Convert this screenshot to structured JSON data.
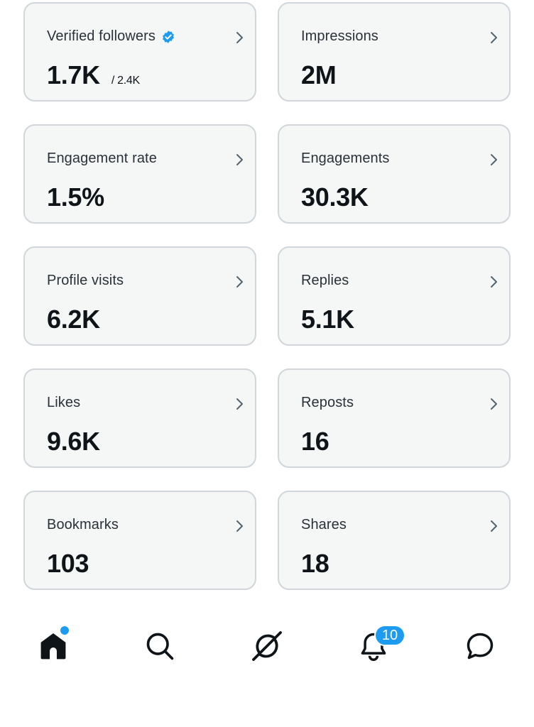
{
  "cards": [
    {
      "label": "Verified followers",
      "value": "1.7K",
      "sub": "/ 2.4K",
      "verified": true
    },
    {
      "label": "Impressions",
      "value": "2M"
    },
    {
      "label": "Engagement rate",
      "value": "1.5%"
    },
    {
      "label": "Engagements",
      "value": "30.3K"
    },
    {
      "label": "Profile visits",
      "value": "6.2K"
    },
    {
      "label": "Replies",
      "value": "5.1K"
    },
    {
      "label": "Likes",
      "value": "9.6K"
    },
    {
      "label": "Reposts",
      "value": "16"
    },
    {
      "label": "Bookmarks",
      "value": "103"
    },
    {
      "label": "Shares",
      "value": "18"
    }
  ],
  "nav": {
    "items": [
      "home-icon",
      "search-icon",
      "grok-icon",
      "bell-icon",
      "messages-icon"
    ],
    "notifications_badge": "10"
  },
  "colors": {
    "accent": "#1d9bf0",
    "card_bg": "#f5f7f7",
    "card_border": "#d0d6da"
  }
}
